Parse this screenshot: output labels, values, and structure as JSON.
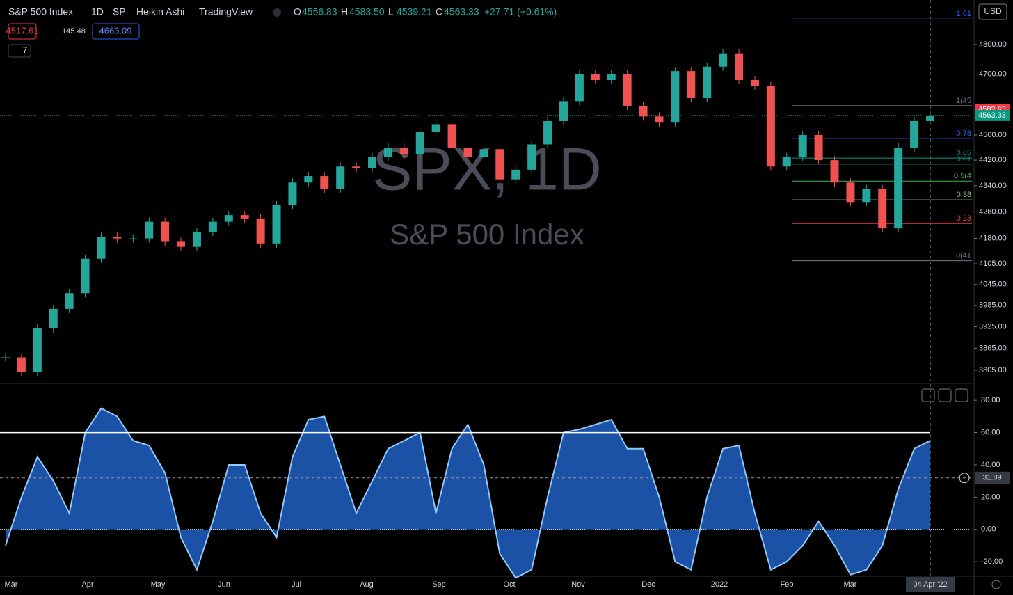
{
  "header": {
    "symbol": "S&P 500 Index",
    "interval": "1D",
    "exchange": "SP",
    "style": "Heikin Ashi",
    "source": "TradingView",
    "ohlc": [
      {
        "key": "O",
        "value": "4556.83"
      },
      {
        "key": "H",
        "value": "4583.50"
      },
      {
        "key": "L",
        "value": "4539.21"
      },
      {
        "key": "C",
        "value": "4563.33"
      }
    ],
    "change": "+27.71 (+0.61%)",
    "bid": "4517.61",
    "spread": "145.48",
    "ask": "4663.09",
    "indicators": "7"
  },
  "currency": "USD",
  "watermark": {
    "title": "SPX, 1D",
    "subtitle": "S&P 500 Index"
  },
  "x_labels": [
    "Mar",
    "Apr",
    "May",
    "Jun",
    "Jul",
    "Aug",
    "Sep",
    "Oct",
    "Nov",
    "Dec",
    "2022",
    "Feb",
    "Mar"
  ],
  "date_label": "04 Apr '22",
  "chart_data": [
    {
      "type": "candlestick",
      "values": [
        3840,
        3800,
        3920,
        3975,
        4020,
        4120,
        4185,
        4180,
        4180,
        4230,
        4170,
        4155,
        4200,
        4230,
        4250,
        4240,
        4165,
        4280,
        4350,
        4370,
        4330,
        4400,
        4395,
        4430,
        4460,
        4440,
        4510,
        4535,
        4460,
        4430,
        4455,
        4360,
        4390,
        4470,
        4545,
        4610,
        4700,
        4680,
        4700,
        4595,
        4560,
        4540,
        4710,
        4620,
        4725,
        4770,
        4680,
        4660,
        4400,
        4430,
        4500,
        4420,
        4350,
        4290,
        4330,
        4210,
        4460,
        4545,
        4563
      ],
      "ylim": [
        3771,
        4955
      ],
      "log": true,
      "yticks": [
        {
          "value": 4800,
          "label": "4800.00"
        },
        {
          "value": 4700,
          "label": "4700.00"
        },
        {
          "value": 4500,
          "label": "4500.00"
        },
        {
          "value": 4420,
          "label": "4420.00"
        },
        {
          "value": 4340,
          "label": "4340.00"
        },
        {
          "value": 4260,
          "label": "4260.00"
        },
        {
          "value": 4180,
          "label": "4180.00"
        },
        {
          "value": 4105,
          "label": "4105.00"
        },
        {
          "value": 4045,
          "label": "4045.00"
        },
        {
          "value": 3985,
          "label": "3985.00"
        },
        {
          "value": 3925,
          "label": "3925.00"
        },
        {
          "value": 3865,
          "label": "3865.00"
        },
        {
          "value": 3805,
          "label": "3805.00"
        }
      ],
      "up_color": "#26a69a",
      "down_color": "#ef5350",
      "high_marker": 4582.63,
      "last_price": 4563.33,
      "fib": {
        "low": 4114,
        "high": 4595,
        "levels": [
          {
            "ratio": 1.61,
            "label": "1.61",
            "color": "#2962ff"
          },
          {
            "ratio": 1,
            "label": "1(45",
            "color": "#787b86"
          },
          {
            "ratio": 0.78,
            "label": "0.78",
            "color": "#2962ff"
          },
          {
            "ratio": 0.65,
            "label": "0.65",
            "color": "#089981"
          },
          {
            "ratio": 0.61,
            "label": "0.61",
            "color": "#089981"
          },
          {
            "ratio": 0.5,
            "label": "0.5(4",
            "color": "#4caf50"
          },
          {
            "ratio": 0.38,
            "label": "0.38",
            "color": "#81c784"
          },
          {
            "ratio": 0.23,
            "label": "0.23",
            "color": "#f23645"
          },
          {
            "ratio": 0,
            "label": "0(41",
            "color": "#787b86"
          }
        ]
      }
    },
    {
      "type": "area",
      "values": [
        -10,
        20,
        45,
        30,
        10,
        60,
        75,
        70,
        55,
        52,
        35,
        -5,
        -25,
        5,
        40,
        40,
        10,
        -5,
        45,
        68,
        70,
        40,
        10,
        30,
        50,
        55,
        60,
        10,
        50,
        65,
        40,
        -15,
        -30,
        -25,
        20,
        60,
        62,
        65,
        68,
        50,
        50,
        20,
        -20,
        -25,
        20,
        50,
        52,
        10,
        -25,
        -20,
        -10,
        5,
        -10,
        -28,
        -25,
        -10,
        25,
        50,
        55
      ],
      "color": "#1e5bb8",
      "line_color": "#90caf9",
      "ylim": [
        -29,
        90
      ],
      "yticks": [
        {
          "value": 80,
          "label": "80.00"
        },
        {
          "value": 60,
          "label": "60.00"
        },
        {
          "value": 40,
          "label": "40.00"
        },
        {
          "value": 20,
          "label": "20.00"
        },
        {
          "value": 0,
          "label": "0.00"
        },
        {
          "value": -20,
          "label": "-20.00"
        }
      ],
      "levels": [
        60
      ],
      "current": 31.89
    }
  ]
}
